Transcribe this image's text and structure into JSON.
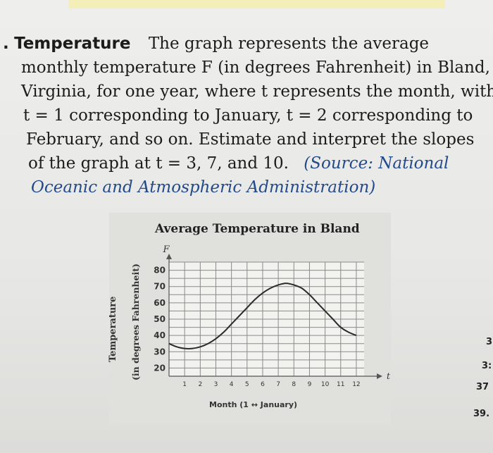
{
  "problem": {
    "number_prefix": ".",
    "heading": "Temperature",
    "lines": [
      "The graph represents the average",
      "monthly temperature F (in degrees Fahrenheit) in Bland,",
      "Virginia, for one year, where t represents the month, with",
      "t = 1 corresponding to January, t = 2 corresponding to",
      "February, and so on. Estimate and interpret the slopes",
      "of the graph at t = 3, 7, and 10."
    ],
    "source_line1": "(Source: National",
    "source_line2": "Oceanic and Atmospheric Administration)"
  },
  "chart_data": {
    "type": "line",
    "title": "Average Temperature in Bland",
    "ylabel": "Temperature",
    "ylabel_units": "(in degrees Fahrenheit)",
    "xlabel": "Month (1 ↔ January)",
    "y_axis_var": "F",
    "x_axis_var": "t",
    "yticks": [
      20,
      30,
      40,
      50,
      60,
      70,
      80
    ],
    "xticks": [
      1,
      2,
      3,
      4,
      5,
      6,
      7,
      8,
      9,
      10,
      11,
      12
    ],
    "ylim": [
      15,
      85
    ],
    "xlim": [
      0,
      12.5
    ],
    "grid": true,
    "series": [
      {
        "x": [
          0,
          0.5,
          1,
          1.5,
          2,
          2.5,
          3,
          3.5,
          4,
          4.5,
          5,
          5.5,
          6,
          6.5,
          7,
          7.5,
          8,
          8.5,
          9,
          9.5,
          10,
          10.5,
          11,
          11.5,
          12
        ],
        "values": [
          35,
          33,
          32,
          32,
          33,
          35,
          38,
          42,
          47,
          52,
          57,
          62,
          66,
          69,
          71,
          72,
          71,
          69,
          65,
          60,
          55,
          50,
          45,
          42,
          40
        ]
      }
    ]
  },
  "side_numbers": [
    "3",
    "3:",
    "37",
    "39."
  ]
}
